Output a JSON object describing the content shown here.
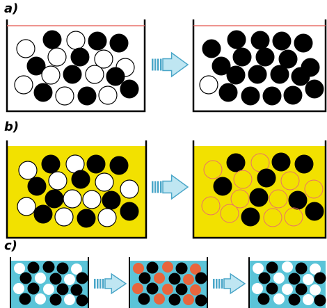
{
  "labels": [
    "a)",
    "b)",
    "c)"
  ],
  "colors": {
    "black": "#000000",
    "white": "#ffffff",
    "yellow": "#f2e100",
    "cyan": "#5bc4d8",
    "orange": "#e8653d",
    "redline": "#e8706a",
    "arrow_light": "#bfe6f2",
    "arrow_dark": "#4aa6c8"
  },
  "icons": [
    "right-arrow-icon"
  ]
}
